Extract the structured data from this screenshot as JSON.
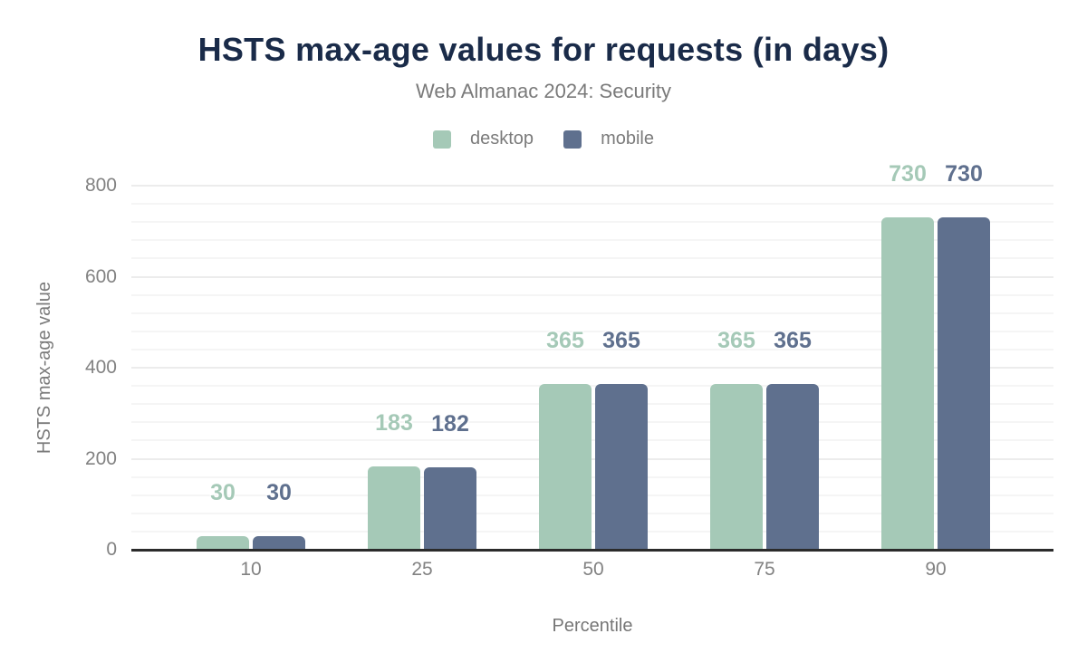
{
  "chart": {
    "title": "HSTS max-age values for requests (in days)",
    "subtitle": "Web Almanac 2024: Security"
  },
  "chart_data": {
    "type": "bar",
    "title": "HSTS max-age values for requests (in days)",
    "subtitle": "Web Almanac 2024: Security",
    "categories": [
      "10",
      "25",
      "50",
      "75",
      "90"
    ],
    "series": [
      {
        "name": "desktop",
        "color": "#a5c9b7",
        "values": [
          30,
          183,
          365,
          365,
          730
        ]
      },
      {
        "name": "mobile",
        "color": "#5f708e",
        "values": [
          30,
          182,
          365,
          365,
          730
        ]
      }
    ],
    "xlabel": "Percentile",
    "ylabel": "HSTS max-age value",
    "ylim": [
      0,
      800
    ],
    "yticks": [
      0,
      200,
      400,
      600,
      800
    ],
    "minor_grid_step": 40,
    "grid": true,
    "legend_position": "top",
    "data_labels": true,
    "colors": {
      "title": "#1a2b49",
      "subtitle_text": "#7a7a7a",
      "axis_text": "#828282",
      "axis_line": "#2b2b2b",
      "grid_major": "#ececec",
      "grid_minor": "#f5f5f5",
      "background": "#ffffff"
    }
  }
}
